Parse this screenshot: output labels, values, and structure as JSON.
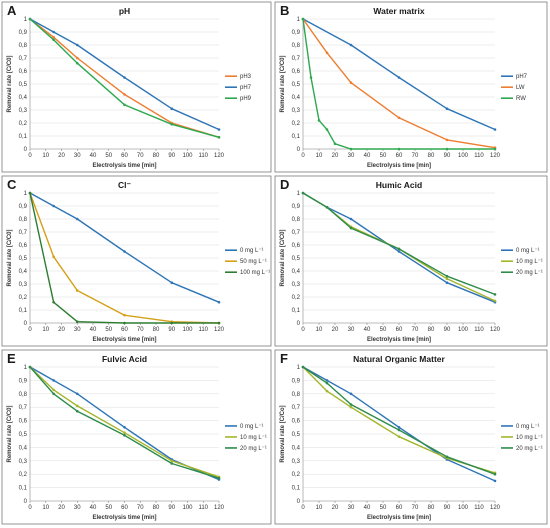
{
  "chart_data": [
    {
      "type": "line",
      "panel": "A",
      "title": "pH",
      "xlabel": "Electrolysis time [min]",
      "ylabel": "Removal rate [C/C0]",
      "xticks": [
        0,
        10,
        20,
        30,
        40,
        50,
        60,
        70,
        80,
        90,
        100,
        110,
        120
      ],
      "yticks": [
        "0",
        "0,1",
        "0,2",
        "0,3",
        "0,4",
        "0,5",
        "0,6",
        "0,7",
        "0,8",
        "0,9",
        "1"
      ],
      "xlim": [
        0,
        120
      ],
      "ylim": [
        0,
        1
      ],
      "legend_position": "right",
      "series": [
        {
          "name": "pH3",
          "color": "#ED7D31",
          "x": [
            0,
            15,
            30,
            60,
            90,
            120
          ],
          "y": [
            1,
            0.86,
            0.7,
            0.42,
            0.2,
            0.09
          ]
        },
        {
          "name": "pH7",
          "color": "#2E75B6",
          "x": [
            0,
            15,
            30,
            60,
            90,
            120
          ],
          "y": [
            1,
            0.9,
            0.8,
            0.55,
            0.31,
            0.15
          ]
        },
        {
          "name": "pH9",
          "color": "#2EA84F",
          "x": [
            0,
            15,
            30,
            60,
            90,
            120
          ],
          "y": [
            1,
            0.84,
            0.66,
            0.34,
            0.19,
            0.09
          ]
        }
      ]
    },
    {
      "type": "line",
      "panel": "B",
      "title": "Water matrix",
      "xlabel": "Electrolysis time [min]",
      "ylabel": "Removal rate [C/C0]",
      "xticks": [
        0,
        10,
        20,
        30,
        40,
        50,
        60,
        70,
        80,
        90,
        100,
        110,
        120
      ],
      "yticks": [
        "0",
        "0,1",
        "0,2",
        "0,3",
        "0,4",
        "0,5",
        "0,6",
        "0,7",
        "0,8",
        "0,9",
        "1"
      ],
      "xlim": [
        0,
        120
      ],
      "ylim": [
        0,
        1
      ],
      "legend_position": "right",
      "series": [
        {
          "name": "pH7",
          "color": "#2E75B6",
          "x": [
            0,
            30,
            60,
            90,
            120
          ],
          "y": [
            1,
            0.8,
            0.55,
            0.31,
            0.15
          ]
        },
        {
          "name": "LW",
          "color": "#ED7D31",
          "x": [
            0,
            15,
            30,
            60,
            90,
            120
          ],
          "y": [
            1,
            0.74,
            0.51,
            0.24,
            0.07,
            0.01
          ]
        },
        {
          "name": "RW",
          "color": "#2EA84F",
          "x": [
            0,
            5,
            10,
            15,
            20,
            30,
            60,
            90,
            120
          ],
          "y": [
            1,
            0.55,
            0.22,
            0.15,
            0.04,
            0,
            0,
            0,
            0
          ]
        }
      ]
    },
    {
      "type": "line",
      "panel": "C",
      "title": "Cl⁻",
      "xlabel": "Electrolysis time [min]",
      "ylabel": "Removal rate [C/C0]",
      "xticks": [
        0,
        10,
        20,
        30,
        40,
        50,
        60,
        70,
        80,
        90,
        100,
        110,
        120
      ],
      "yticks": [
        "0",
        "0,1",
        "0,2",
        "0,3",
        "0,4",
        "0,5",
        "0,6",
        "0,7",
        "0,8",
        "0,9",
        "1"
      ],
      "xlim": [
        0,
        120
      ],
      "ylim": [
        0,
        1
      ],
      "legend_position": "right",
      "series": [
        {
          "name": "0 mg L⁻¹",
          "color": "#2E75B6",
          "x": [
            0,
            15,
            30,
            60,
            90,
            120
          ],
          "y": [
            1,
            0.9,
            0.8,
            0.55,
            0.31,
            0.16
          ]
        },
        {
          "name": "50 mg L⁻¹",
          "color": "#D4A017",
          "x": [
            0,
            15,
            30,
            60,
            90,
            120
          ],
          "y": [
            1,
            0.51,
            0.25,
            0.06,
            0.01,
            0
          ]
        },
        {
          "name": "100 mg L⁻¹",
          "color": "#2E7D32",
          "x": [
            0,
            15,
            30,
            60,
            90,
            120
          ],
          "y": [
            1,
            0.16,
            0.01,
            0,
            0,
            0
          ]
        }
      ]
    },
    {
      "type": "line",
      "panel": "D",
      "title": "Humic Acid",
      "xlabel": "Electrolysis time [min]",
      "ylabel": "Removal rate [C/C0]",
      "xticks": [
        0,
        10,
        20,
        30,
        40,
        50,
        60,
        70,
        80,
        90,
        100,
        110,
        120
      ],
      "yticks": [
        "0",
        "0,1",
        "0,2",
        "0,3",
        "0,4",
        "0,5",
        "0,6",
        "0,7",
        "0,8",
        "0,9",
        "1"
      ],
      "xlim": [
        0,
        120
      ],
      "ylim": [
        0,
        1
      ],
      "legend_position": "right",
      "series": [
        {
          "name": "0 mg L⁻¹",
          "color": "#2E75B6",
          "x": [
            0,
            15,
            30,
            60,
            90,
            120
          ],
          "y": [
            1,
            0.89,
            0.8,
            0.55,
            0.31,
            0.16
          ]
        },
        {
          "name": "10 mg L⁻¹",
          "color": "#A3B52B",
          "x": [
            0,
            15,
            30,
            60,
            90,
            120
          ],
          "y": [
            1,
            0.89,
            0.74,
            0.57,
            0.34,
            0.17
          ]
        },
        {
          "name": "20 mg L⁻¹",
          "color": "#2E8B4A",
          "x": [
            0,
            15,
            30,
            60,
            90,
            120
          ],
          "y": [
            1,
            0.89,
            0.73,
            0.57,
            0.36,
            0.22
          ]
        }
      ]
    },
    {
      "type": "line",
      "panel": "E",
      "title": "Fulvic Acid",
      "xlabel": "Electrolysis time [min]",
      "ylabel": "Removal rate [C/C0]",
      "xticks": [
        0,
        10,
        20,
        30,
        40,
        50,
        60,
        70,
        80,
        90,
        100,
        110,
        120
      ],
      "yticks": [
        "0",
        "0,1",
        "0,2",
        "0,3",
        "0,4",
        "0,5",
        "0,6",
        "0,7",
        "0,8",
        "0,9",
        "1"
      ],
      "xlim": [
        0,
        120
      ],
      "ylim": [
        0,
        1
      ],
      "legend_position": "right",
      "series": [
        {
          "name": "0 mg L⁻¹",
          "color": "#2E75B6",
          "x": [
            0,
            15,
            30,
            60,
            90,
            120
          ],
          "y": [
            1,
            0.9,
            0.8,
            0.55,
            0.31,
            0.16
          ]
        },
        {
          "name": "10 mg L⁻¹",
          "color": "#A3B52B",
          "x": [
            0,
            15,
            30,
            60,
            90,
            120
          ],
          "y": [
            1,
            0.83,
            0.71,
            0.51,
            0.3,
            0.18
          ]
        },
        {
          "name": "20 mg L⁻¹",
          "color": "#2E8B4A",
          "x": [
            0,
            15,
            30,
            60,
            90,
            120
          ],
          "y": [
            1,
            0.8,
            0.67,
            0.49,
            0.28,
            0.17
          ]
        }
      ]
    },
    {
      "type": "line",
      "panel": "F",
      "title": "Natural Organic Matter",
      "xlabel": "Electrolysis time [min]",
      "ylabel": "Removal rate [C/Co]",
      "xticks": [
        0,
        10,
        20,
        30,
        40,
        50,
        60,
        70,
        80,
        90,
        100,
        110,
        120
      ],
      "yticks": [
        "0",
        "0,1",
        "0,2",
        "0,3",
        "0,4",
        "0,5",
        "0,6",
        "0,7",
        "0,8",
        "0,9",
        "1"
      ],
      "xlim": [
        0,
        120
      ],
      "ylim": [
        0,
        1
      ],
      "legend_position": "right",
      "series": [
        {
          "name": "0 mg L⁻¹",
          "color": "#2E75B6",
          "x": [
            0,
            15,
            30,
            60,
            90,
            120
          ],
          "y": [
            1,
            0.9,
            0.8,
            0.55,
            0.31,
            0.15
          ]
        },
        {
          "name": "10 mg L⁻¹",
          "color": "#A3B52B",
          "x": [
            0,
            15,
            30,
            60,
            90,
            120
          ],
          "y": [
            1,
            0.82,
            0.7,
            0.48,
            0.32,
            0.21
          ]
        },
        {
          "name": "20 mg L⁻¹",
          "color": "#2E8B4A",
          "x": [
            0,
            15,
            30,
            60,
            90,
            120
          ],
          "y": [
            1,
            0.88,
            0.72,
            0.53,
            0.33,
            0.2
          ]
        }
      ]
    }
  ]
}
